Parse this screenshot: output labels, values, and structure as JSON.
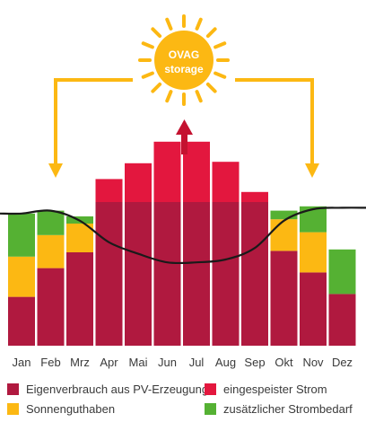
{
  "chart_data": {
    "type": "bar",
    "categories": [
      "Jan",
      "Feb",
      "Mrz",
      "Apr",
      "Mai",
      "Jun",
      "Jul",
      "Aug",
      "Sep",
      "Okt",
      "Nov",
      "Dez"
    ],
    "ylim": [
      0,
      100
    ],
    "series": [
      {
        "name": "Eigenverbrauch aus PV-Erzeugung",
        "color": "#b0193f",
        "values": [
          34,
          54,
          65,
          100,
          100,
          100,
          100,
          100,
          100,
          66,
          51,
          36
        ]
      },
      {
        "name": "Sonnenguthaben",
        "color": "#fcb813",
        "values": [
          28,
          23,
          20,
          0,
          0,
          0,
          0,
          0,
          0,
          22,
          28,
          0
        ]
      },
      {
        "name": "zusätzlicher Strombedarf",
        "color": "#55b133",
        "values": [
          30,
          17,
          5,
          0,
          0,
          0,
          0,
          0,
          0,
          6,
          18,
          31
        ]
      },
      {
        "name": "eingespeister Strom",
        "color": "#e3173e",
        "values": [
          0,
          0,
          0,
          16,
          27,
          42,
          42,
          28,
          7,
          0,
          0,
          0
        ]
      }
    ],
    "demand_line": [
      92,
      94,
      87,
      72,
      64,
      58,
      58,
      60,
      68,
      87,
      95,
      96
    ],
    "legend_order": [
      0,
      3,
      1,
      2
    ],
    "line_color": "#1a1a1a",
    "arrow_color": "#fcb813",
    "up_arrow_color": "#c41230",
    "grid": false
  },
  "sun": {
    "line1": "OVAG",
    "line2": "storage",
    "color": "#fcb813"
  }
}
